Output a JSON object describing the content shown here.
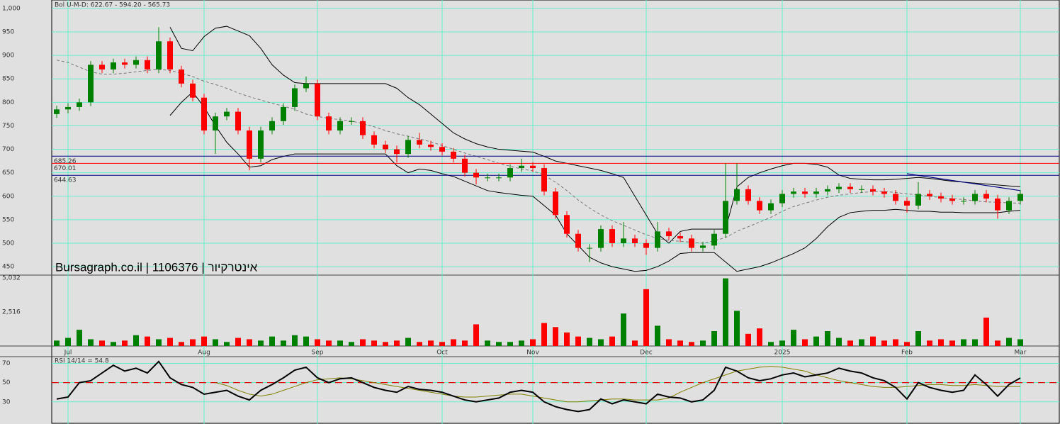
{
  "chart_data": [
    {
      "type": "candlestick",
      "title": "Bol U-M-D: 622.67 - 594.20 - 565.73",
      "watermark": "Bursagraph.co.il | 1106376 | אינטרקיור",
      "categories": [
        null,
        "Jul",
        null,
        null,
        null,
        null,
        null,
        null,
        null,
        null,
        null,
        null,
        null,
        "Aug",
        null,
        null,
        null,
        null,
        null,
        null,
        null,
        null,
        null,
        "Sep",
        null,
        null,
        null,
        null,
        null,
        null,
        null,
        null,
        null,
        null,
        "Oct",
        null,
        null,
        null,
        null,
        null,
        null,
        null,
        "Nov",
        null,
        null,
        null,
        null,
        null,
        null,
        null,
        null,
        null,
        "Dec",
        null,
        null,
        null,
        null,
        null,
        null,
        null,
        null,
        null,
        null,
        null,
        "2025",
        null,
        null,
        null,
        null,
        null,
        null,
        null,
        null,
        null,
        null,
        "Feb",
        null,
        null,
        null,
        null,
        null,
        null,
        null,
        null,
        null,
        "Mar"
      ],
      "open": [
        775,
        785,
        790,
        800,
        880,
        870,
        885,
        880,
        890,
        870,
        930,
        870,
        840,
        810,
        740,
        770,
        780,
        740,
        680,
        740,
        760,
        790,
        830,
        840,
        770,
        740,
        760,
        760,
        730,
        710,
        700,
        690,
        720,
        710,
        705,
        695,
        680,
        650,
        640,
        640,
        640,
        660,
        665,
        660,
        610,
        560,
        520,
        490,
        490,
        530,
        500,
        510,
        500,
        490,
        525,
        515,
        510,
        490,
        495,
        520,
        590,
        615,
        590,
        570,
        585,
        605,
        610,
        605,
        610,
        615,
        620,
        615,
        615,
        610,
        605,
        590,
        580,
        605,
        600,
        595,
        590,
        590,
        605,
        595,
        570,
        590
      ],
      "high": [
        793,
        798,
        808,
        888,
        888,
        893,
        893,
        898,
        898,
        960,
        938,
        878,
        848,
        818,
        778,
        788,
        788,
        748,
        748,
        768,
        798,
        838,
        855,
        848,
        778,
        768,
        768,
        768,
        738,
        718,
        708,
        728,
        735,
        718,
        713,
        703,
        688,
        658,
        648,
        648,
        668,
        680,
        673,
        668,
        618,
        568,
        528,
        498,
        538,
        538,
        545,
        518,
        508,
        545,
        533,
        523,
        518,
        503,
        528,
        670,
        670,
        623,
        598,
        593,
        613,
        618,
        618,
        618,
        623,
        628,
        628,
        623,
        623,
        618,
        613,
        598,
        630,
        613,
        608,
        603,
        598,
        613,
        613,
        603,
        598,
        613
      ],
      "low": [
        767,
        777,
        782,
        792,
        862,
        862,
        872,
        872,
        862,
        862,
        862,
        832,
        802,
        732,
        690,
        762,
        732,
        655,
        672,
        732,
        752,
        782,
        822,
        762,
        732,
        732,
        752,
        722,
        702,
        692,
        672,
        682,
        702,
        697,
        687,
        672,
        642,
        625,
        632,
        632,
        632,
        652,
        652,
        602,
        552,
        512,
        482,
        460,
        482,
        492,
        492,
        492,
        475,
        482,
        507,
        502,
        482,
        482,
        487,
        512,
        582,
        582,
        562,
        562,
        577,
        597,
        597,
        597,
        602,
        607,
        607,
        607,
        602,
        597,
        582,
        565,
        572,
        592,
        587,
        582,
        582,
        582,
        587,
        552,
        562,
        582
      ],
      "close": [
        785,
        790,
        800,
        880,
        870,
        885,
        880,
        890,
        870,
        930,
        870,
        840,
        810,
        740,
        770,
        780,
        740,
        680,
        740,
        760,
        790,
        830,
        840,
        770,
        740,
        760,
        760,
        730,
        710,
        700,
        690,
        720,
        710,
        705,
        695,
        680,
        650,
        640,
        640,
        640,
        660,
        665,
        660,
        610,
        560,
        520,
        490,
        490,
        530,
        500,
        510,
        500,
        490,
        525,
        515,
        510,
        490,
        495,
        520,
        590,
        615,
        590,
        570,
        585,
        605,
        610,
        605,
        610,
        615,
        620,
        615,
        615,
        610,
        605,
        590,
        580,
        605,
        600,
        595,
        590,
        590,
        605,
        595,
        570,
        590,
        605
      ],
      "bands": {
        "upper": [
          null,
          null,
          null,
          null,
          null,
          null,
          null,
          null,
          null,
          null,
          960,
          915,
          910,
          940,
          958,
          962,
          952,
          942,
          915,
          880,
          858,
          842,
          840,
          840,
          840,
          840,
          840,
          840,
          840,
          840,
          830,
          810,
          795,
          775,
          755,
          735,
          722,
          712,
          705,
          700,
          698,
          696,
          694,
          685,
          675,
          670,
          665,
          660,
          655,
          648,
          640,
          600,
          560,
          520,
          500,
          525,
          530,
          530,
          530,
          530,
          620,
          640,
          650,
          658,
          665,
          670,
          670,
          668,
          662,
          645,
          638,
          636,
          635,
          635,
          636,
          638,
          640,
          638,
          635,
          632,
          630,
          628,
          626,
          624,
          622,
          620
        ],
        "middle": [
          890,
          885,
          875,
          865,
          860,
          860,
          862,
          865,
          868,
          870,
          868,
          862,
          855,
          845,
          838,
          830,
          820,
          812,
          805,
          798,
          792,
          785,
          775,
          770,
          766,
          763,
          760,
          755,
          748,
          740,
          733,
          728,
          722,
          716,
          708,
          700,
          692,
          685,
          678,
          670,
          664,
          658,
          654,
          645,
          630,
          612,
          592,
          575,
          560,
          548,
          538,
          528,
          518,
          510,
          506,
          504,
          502,
          500,
          505,
          512,
          525,
          535,
          545,
          555,
          568,
          578,
          585,
          592,
          598,
          602,
          605,
          608,
          610,
          610,
          608,
          605,
          603,
          600,
          597,
          595,
          593,
          590,
          588,
          587,
          586,
          585
        ],
        "lower": [
          null,
          null,
          null,
          null,
          null,
          null,
          null,
          null,
          null,
          null,
          772,
          800,
          822,
          790,
          750,
          715,
          690,
          662,
          665,
          678,
          685,
          690,
          690,
          690,
          690,
          690,
          690,
          690,
          690,
          690,
          665,
          650,
          658,
          655,
          648,
          642,
          632,
          622,
          612,
          608,
          605,
          602,
          600,
          580,
          560,
          520,
          495,
          470,
          458,
          450,
          445,
          440,
          442,
          450,
          462,
          478,
          480,
          480,
          480,
          460,
          440,
          445,
          450,
          458,
          468,
          478,
          490,
          510,
          535,
          555,
          565,
          568,
          570,
          570,
          572,
          570,
          568,
          568,
          566,
          566,
          565,
          565,
          565,
          565,
          568,
          570
        ]
      },
      "hlines": [
        {
          "value": 685.26,
          "color": "#000080"
        },
        {
          "value": 670.01,
          "color": "#ff0000"
        },
        {
          "value": 644.63,
          "color": "#000080"
        }
      ],
      "trendline": {
        "start": [
          75,
          648
        ],
        "end": [
          85,
          612
        ],
        "color": "#000080"
      },
      "up_color": "#008000",
      "down_color": "#ff0000",
      "ylim": [
        432,
        1018
      ],
      "yticks": [
        450,
        500,
        550,
        600,
        650,
        700,
        750,
        800,
        850,
        900,
        950,
        {
          "value": 1000,
          "label": "1,000"
        }
      ],
      "grid": true
    },
    {
      "type": "bar",
      "values": [
        400,
        600,
        1200,
        500,
        400,
        300,
        400,
        800,
        700,
        500,
        600,
        300,
        500,
        700,
        500,
        300,
        600,
        500,
        400,
        700,
        400,
        800,
        700,
        500,
        400,
        400,
        300,
        500,
        400,
        300,
        400,
        600,
        300,
        400,
        300,
        500,
        400,
        1600,
        400,
        300,
        300,
        400,
        500,
        1700,
        1400,
        1000,
        700,
        600,
        500,
        700,
        2400,
        400,
        4200,
        1500,
        500,
        400,
        300,
        400,
        1100,
        5000,
        2600,
        900,
        1300,
        300,
        400,
        1200,
        500,
        700,
        1100,
        600,
        400,
        500,
        700,
        400,
        500,
        300,
        1100,
        400,
        500,
        400,
        500,
        500,
        2100,
        400,
        600,
        500
      ],
      "ylim": [
        0,
        5240
      ],
      "yticks": [
        {
          "value": 2516,
          "label": "2,516"
        },
        {
          "value": 5032,
          "label": "5,032"
        }
      ],
      "grid": false
    },
    {
      "type": "line",
      "title": "RSI 14/14 = 54.8",
      "series": [
        {
          "color": "#000000",
          "values": [
            33,
            35,
            50,
            52,
            60,
            68,
            62,
            65,
            60,
            72,
            55,
            48,
            45,
            38,
            40,
            42,
            36,
            32,
            42,
            48,
            55,
            63,
            66,
            55,
            50,
            54,
            55,
            50,
            45,
            42,
            40,
            46,
            43,
            42,
            40,
            36,
            32,
            30,
            32,
            34,
            40,
            42,
            40,
            30,
            25,
            22,
            20,
            22,
            33,
            28,
            32,
            30,
            28,
            38,
            35,
            34,
            30,
            32,
            42,
            66,
            62,
            55,
            52,
            54,
            58,
            60,
            56,
            58,
            60,
            65,
            62,
            60,
            55,
            52,
            45,
            33,
            50,
            45,
            42,
            40,
            42,
            58,
            48,
            36,
            48,
            54.8
          ]
        },
        {
          "color": "#808000",
          "values": [
            null,
            null,
            null,
            null,
            null,
            null,
            null,
            null,
            null,
            null,
            null,
            null,
            null,
            null,
            50,
            47,
            42,
            38,
            36,
            38,
            42,
            46,
            50,
            53,
            54,
            55,
            54,
            52,
            50,
            48,
            46,
            44,
            42,
            40,
            38,
            36,
            35,
            35,
            36,
            37,
            38,
            38,
            36,
            34,
            32,
            30,
            30,
            31,
            32,
            33,
            33,
            32,
            32,
            32,
            34,
            40,
            45,
            50,
            54,
            58,
            62,
            64,
            66,
            67,
            66,
            64,
            62,
            58,
            55,
            52,
            50,
            48,
            46,
            45,
            45,
            46,
            47,
            48,
            48,
            47,
            47,
            48,
            47,
            46,
            46,
            46
          ]
        }
      ],
      "reference_line": 50,
      "ylim": [
        7,
        77
      ],
      "yticks": [
        30,
        50,
        70
      ],
      "grid": true
    }
  ]
}
